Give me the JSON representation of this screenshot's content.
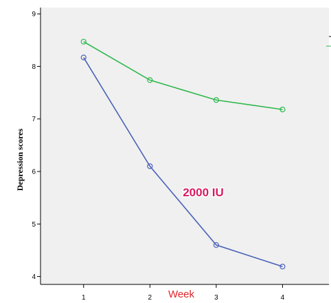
{
  "chart_data": {
    "type": "line",
    "x": [
      1,
      2,
      3,
      4
    ],
    "series": [
      {
        "values": [
          8.47,
          7.74,
          7.36,
          7.18
        ],
        "color": "#2db84a"
      },
      {
        "name": "2000 IU",
        "values": [
          8.17,
          6.1,
          4.6,
          4.19
        ],
        "color": "#4a62b8"
      }
    ],
    "title": "",
    "xlabel": "Week",
    "ylabel": "Depression scores",
    "xlim": [
      0.35,
      4.7
    ],
    "ylim": [
      3.85,
      9.12
    ],
    "xticks": [
      "1",
      "2",
      "3",
      "4"
    ],
    "yticks": [
      "4",
      "5",
      "6",
      "7",
      "8",
      "9"
    ],
    "grid": false,
    "marker": "hollow-circle",
    "plot_background": "#f0f0f0",
    "annotation": {
      "text": "2000 IU",
      "color": "#d81b60"
    }
  }
}
